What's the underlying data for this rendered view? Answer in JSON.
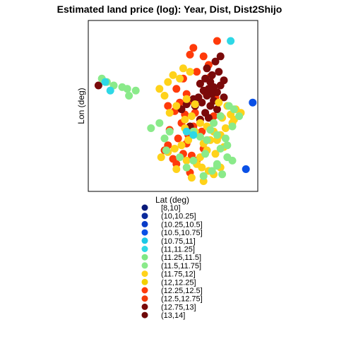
{
  "chart_data": {
    "type": "scatter",
    "title": "Estimated land price (log): Year, Dist, Dist2Shijo",
    "xlabel": "Lat (deg)",
    "ylabel": "Lon (deg)",
    "xlim": [
      0,
      1
    ],
    "ylim": [
      0,
      1
    ],
    "grid": false,
    "axis_ticks": false,
    "legend": {
      "title": "Lat (deg)",
      "placement": "below-plot",
      "entries": [
        {
          "label": "[8,10]",
          "color": "#0A1A7A"
        },
        {
          "label": "(10,10.25]",
          "color": "#0A2A9C"
        },
        {
          "label": "(10.25,10.5]",
          "color": "#0A3CC8"
        },
        {
          "label": "(10.5,10.75]",
          "color": "#0A50E6"
        },
        {
          "label": "(10.75,11]",
          "color": "#1AC8E6"
        },
        {
          "label": "(11,11.25]",
          "color": "#2ED8E6"
        },
        {
          "label": "(11.25,11.5]",
          "color": "#7EE884"
        },
        {
          "label": "(11.5,11.75]",
          "color": "#8AEA8A"
        },
        {
          "label": "(11.75,12]",
          "color": "#FFD21A"
        },
        {
          "label": "(12,12.25]",
          "color": "#F2D000"
        },
        {
          "label": "(12.25,12.5]",
          "color": "#FF3A0A"
        },
        {
          "label": "(12.5,12.75]",
          "color": "#F23A0A"
        },
        {
          "label": "(12.75,13]",
          "color": "#7A0A0A"
        },
        {
          "label": "(13,14]",
          "color": "#6E0808"
        }
      ]
    },
    "series": [
      {
        "color": "#FF3A0A",
        "x": [
          0.62,
          0.6,
          0.68,
          0.71,
          0.64,
          0.72,
          0.56,
          0.66,
          0.52,
          0.69,
          0.58,
          0.75,
          0.61,
          0.54,
          0.47,
          0.51,
          0.63,
          0.57,
          0.74,
          0.66,
          0.55,
          0.62,
          0.48,
          0.67,
          0.59,
          0.53,
          0.7,
          0.58,
          0.47,
          0.68,
          0.56,
          0.61,
          0.5,
          0.64,
          0.52,
          0.45,
          0.6,
          0.76
        ],
        "y": [
          0.84,
          0.8,
          0.79,
          0.74,
          0.7,
          0.67,
          0.66,
          0.63,
          0.6,
          0.58,
          0.57,
          0.55,
          0.53,
          0.52,
          0.5,
          0.47,
          0.46,
          0.45,
          0.44,
          0.42,
          0.4,
          0.38,
          0.36,
          0.35,
          0.33,
          0.31,
          0.3,
          0.28,
          0.27,
          0.25,
          0.22,
          0.21,
          0.19,
          0.18,
          0.16,
          0.24,
          0.11,
          0.88
        ]
      },
      {
        "color": "#7A0A0A",
        "x": [
          0.06,
          0.78,
          0.75,
          0.7,
          0.77,
          0.73,
          0.69,
          0.8,
          0.72,
          0.66,
          0.78,
          0.74,
          0.71,
          0.68,
          0.76,
          0.73,
          0.7,
          0.65,
          0.8,
          0.62,
          0.74,
          0.67,
          0.58,
          0.63,
          0.72,
          0.55,
          0.76,
          0.69,
          0.78,
          0.71,
          0.66,
          0.6
        ],
        "y": [
          0.62,
          0.79,
          0.76,
          0.72,
          0.7,
          0.68,
          0.66,
          0.65,
          0.64,
          0.63,
          0.62,
          0.61,
          0.6,
          0.59,
          0.58,
          0.57,
          0.56,
          0.55,
          0.55,
          0.54,
          0.53,
          0.52,
          0.51,
          0.5,
          0.5,
          0.48,
          0.48,
          0.46,
          0.44,
          0.43,
          0.42,
          0.38
        ]
      },
      {
        "color": "#FFD21A",
        "x": [
          0.56,
          0.6,
          0.5,
          0.54,
          0.47,
          0.42,
          0.45,
          0.58,
          0.63,
          0.52,
          0.48,
          0.61,
          0.57,
          0.66,
          0.7,
          0.77,
          0.82,
          0.87,
          0.84,
          0.79,
          0.85,
          0.81,
          0.9,
          0.86,
          0.74,
          0.78,
          0.72,
          0.68,
          0.62,
          0.59,
          0.55,
          0.51,
          0.47,
          0.43,
          0.58,
          0.64,
          0.67,
          0.71,
          0.76,
          0.8,
          0.57,
          0.63,
          0.7,
          0.75,
          0.66,
          0.52,
          0.61,
          0.68,
          0.74,
          0.78
        ],
        "y": [
          0.72,
          0.7,
          0.68,
          0.66,
          0.64,
          0.6,
          0.56,
          0.54,
          0.51,
          0.5,
          0.46,
          0.44,
          0.42,
          0.4,
          0.38,
          0.52,
          0.5,
          0.48,
          0.45,
          0.43,
          0.4,
          0.37,
          0.46,
          0.42,
          0.35,
          0.33,
          0.3,
          0.28,
          0.33,
          0.3,
          0.27,
          0.25,
          0.23,
          0.2,
          0.18,
          0.16,
          0.14,
          0.12,
          0.3,
          0.26,
          0.37,
          0.35,
          0.24,
          0.22,
          0.2,
          0.13,
          0.08,
          0.06,
          0.1,
          0.14
        ]
      },
      {
        "color": "#8AEA8A",
        "x": [
          0.08,
          0.15,
          0.2,
          0.23,
          0.28,
          0.11,
          0.24,
          0.37,
          0.42,
          0.48,
          0.45,
          0.62,
          0.66,
          0.72,
          0.76,
          0.81,
          0.85,
          0.89,
          0.86,
          0.83,
          0.78,
          0.74,
          0.7,
          0.78,
          0.82,
          0.85,
          0.79,
          0.73,
          0.76,
          0.69,
          0.62,
          0.58,
          0.46,
          0.54,
          0.68,
          0.76,
          0.82
        ],
        "y": [
          0.66,
          0.62,
          0.61,
          0.6,
          0.59,
          0.64,
          0.56,
          0.37,
          0.4,
          0.35,
          0.31,
          0.35,
          0.32,
          0.36,
          0.33,
          0.31,
          0.38,
          0.44,
          0.48,
          0.5,
          0.44,
          0.4,
          0.3,
          0.25,
          0.2,
          0.18,
          0.1,
          0.12,
          0.16,
          0.22,
          0.18,
          0.14,
          0.24,
          0.2,
          0.09,
          0.15,
          0.27
        ]
      },
      {
        "color": "#2ED8E6",
        "x": [
          0.1,
          0.13,
          0.58,
          0.84,
          0.62
        ],
        "y": [
          0.64,
          0.59,
          0.35,
          0.88,
          0.33
        ]
      },
      {
        "color": "#0A50E6",
        "x": [
          0.97,
          0.93
        ],
        "y": [
          0.52,
          0.13
        ]
      }
    ]
  }
}
